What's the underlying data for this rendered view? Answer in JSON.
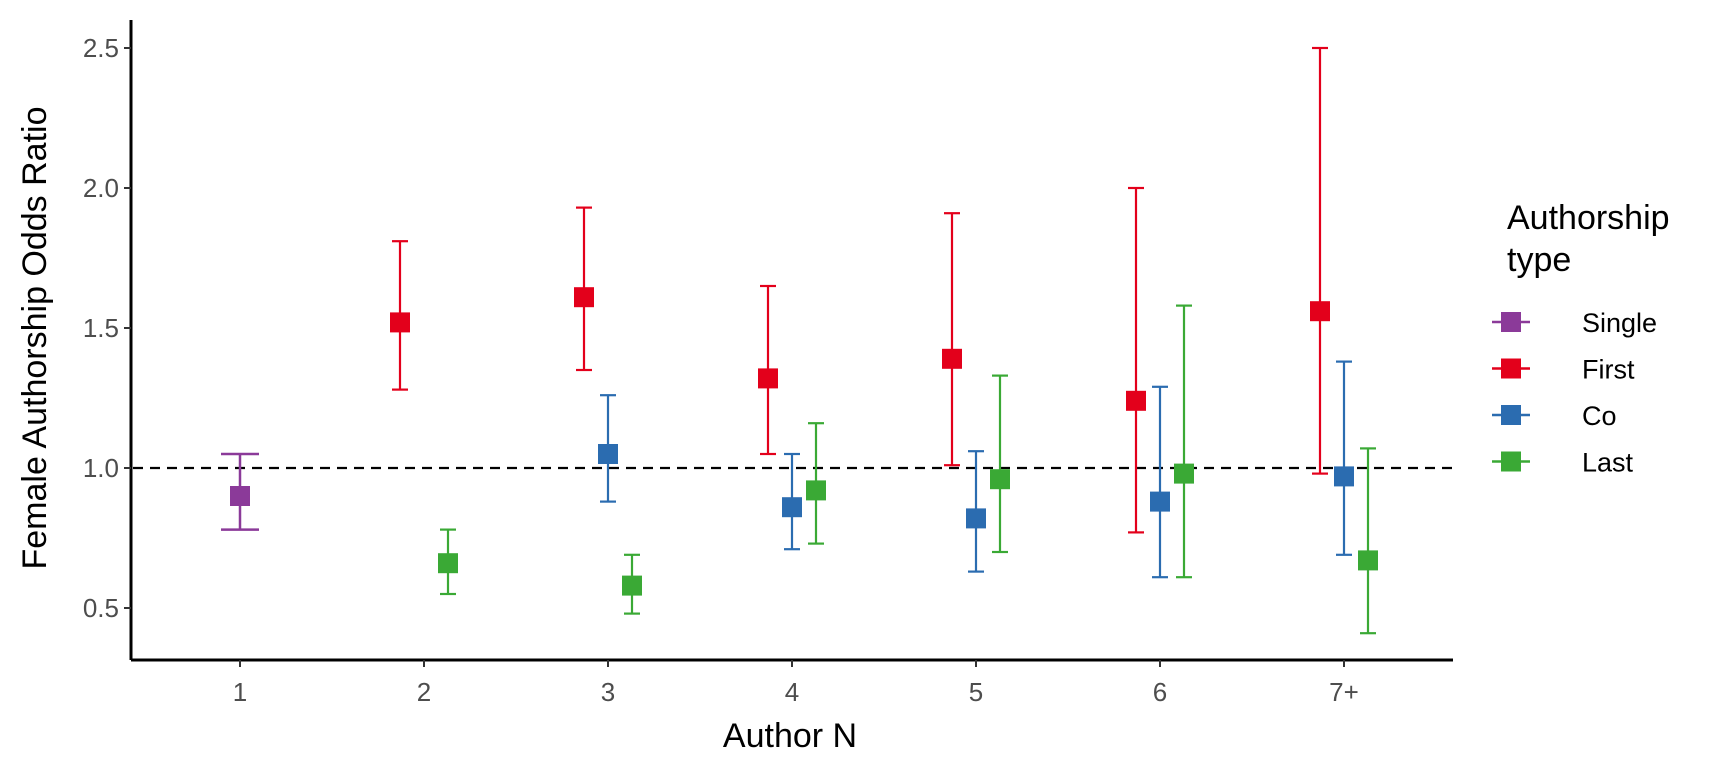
{
  "chart_data": {
    "type": "scatter",
    "subtype": "point-range with error bars",
    "xlabel": "Author N",
    "ylabel": "Female Authorship Odds Ratio",
    "categories": [
      "1",
      "2",
      "3",
      "4",
      "5",
      "6",
      "7+"
    ],
    "y_ticks": [
      "0.5",
      "1.0",
      "1.5",
      "2.0",
      "2.5"
    ],
    "ylim": [
      0.3,
      2.6
    ],
    "reference_line": 1.0,
    "grid": false,
    "legend": {
      "title_lines": [
        "Authorship",
        "type"
      ],
      "position": "right"
    },
    "series": [
      {
        "name": "Single",
        "color": "#8b3a99",
        "points": [
          {
            "x": "1",
            "y": 0.9,
            "low": 0.78,
            "high": 1.05
          }
        ]
      },
      {
        "name": "First",
        "color": "#e3001b",
        "points": [
          {
            "x": "2",
            "y": 1.52,
            "low": 1.28,
            "high": 1.81
          },
          {
            "x": "3",
            "y": 1.61,
            "low": 1.35,
            "high": 1.93
          },
          {
            "x": "4",
            "y": 1.32,
            "low": 1.05,
            "high": 1.65
          },
          {
            "x": "5",
            "y": 1.39,
            "low": 1.01,
            "high": 1.91
          },
          {
            "x": "6",
            "y": 1.24,
            "low": 0.77,
            "high": 2.0
          },
          {
            "x": "7+",
            "y": 1.56,
            "low": 0.98,
            "high": 2.5
          }
        ]
      },
      {
        "name": "Co",
        "color": "#2b6cb0",
        "points": [
          {
            "x": "3",
            "y": 1.05,
            "low": 0.88,
            "high": 1.26
          },
          {
            "x": "4",
            "y": 0.86,
            "low": 0.71,
            "high": 1.05
          },
          {
            "x": "5",
            "y": 0.82,
            "low": 0.63,
            "high": 1.06
          },
          {
            "x": "6",
            "y": 0.88,
            "low": 0.61,
            "high": 1.29
          },
          {
            "x": "7+",
            "y": 0.97,
            "low": 0.69,
            "high": 1.38
          }
        ]
      },
      {
        "name": "Last",
        "color": "#3aa935",
        "points": [
          {
            "x": "2",
            "y": 0.66,
            "low": 0.55,
            "high": 0.78
          },
          {
            "x": "3",
            "y": 0.58,
            "low": 0.48,
            "high": 0.69
          },
          {
            "x": "4",
            "y": 0.92,
            "low": 0.73,
            "high": 1.16
          },
          {
            "x": "5",
            "y": 0.96,
            "low": 0.7,
            "high": 1.33
          },
          {
            "x": "6",
            "y": 0.98,
            "low": 0.61,
            "high": 1.58
          },
          {
            "x": "7+",
            "y": 0.67,
            "low": 0.41,
            "high": 1.07
          }
        ]
      }
    ]
  }
}
